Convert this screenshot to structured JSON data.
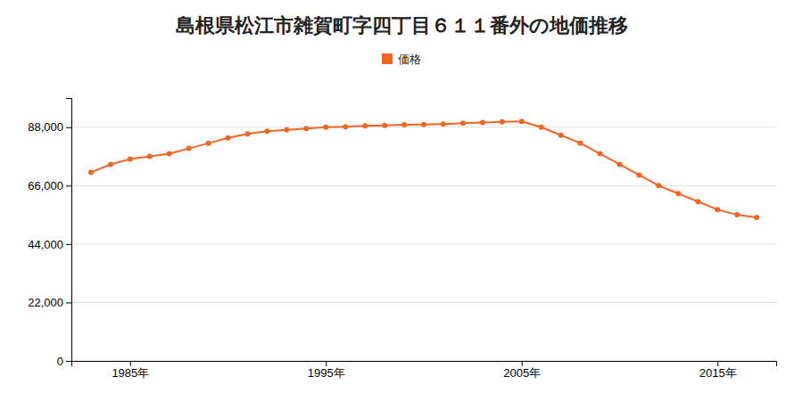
{
  "chart_data": {
    "type": "line",
    "title": "島根県松江市雑賀町字四丁目６１１番外の地価推移",
    "x": [
      1983,
      1984,
      1985,
      1986,
      1987,
      1988,
      1989,
      1990,
      1991,
      1992,
      1993,
      1994,
      1995,
      1996,
      1997,
      1998,
      1999,
      2000,
      2001,
      2002,
      2003,
      2004,
      2005,
      2006,
      2007,
      2008,
      2009,
      2010,
      2011,
      2012,
      2013,
      2014,
      2015,
      2016,
      2017
    ],
    "series": [
      {
        "name": "価格",
        "color": "#f26522",
        "marker": "circle",
        "values": [
          71000,
          74000,
          76000,
          77000,
          78000,
          80000,
          82000,
          84000,
          85500,
          86500,
          87000,
          87500,
          88000,
          88200,
          88500,
          88700,
          88900,
          89000,
          89200,
          89500,
          89800,
          90000,
          90200,
          88000,
          85000,
          82000,
          78000,
          74000,
          70000,
          66000,
          63000,
          60000,
          57000,
          55000,
          54000
        ]
      }
    ],
    "xlim": [
      1982,
      2018
    ],
    "ylim": [
      0,
      99000
    ],
    "xticks": [
      {
        "value": 1985,
        "label": "1985年"
      },
      {
        "value": 1995,
        "label": "1995年"
      },
      {
        "value": 2005,
        "label": "2005年"
      },
      {
        "value": 2015,
        "label": "2015年"
      }
    ],
    "yticks": [
      0,
      {
        "value": 22000,
        "label": "22,000"
      },
      {
        "value": 44000,
        "label": "44,000"
      },
      {
        "value": 66000,
        "label": "66,000"
      },
      {
        "value": 88000,
        "label": "88,000"
      }
    ],
    "grid": "y",
    "legend": "top"
  }
}
